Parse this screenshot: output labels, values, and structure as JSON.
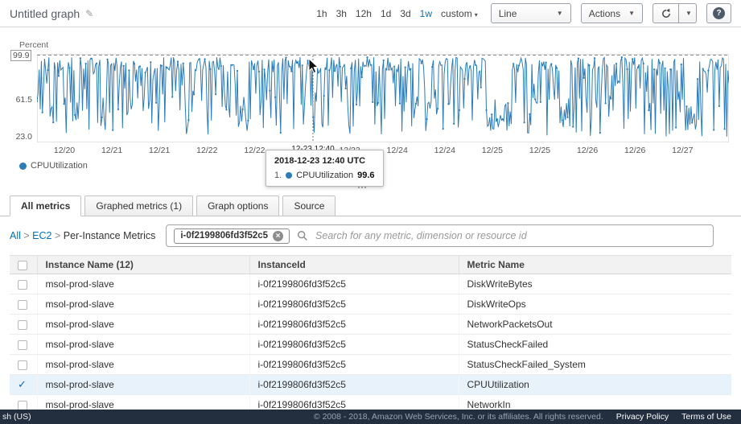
{
  "header": {
    "title": "Untitled graph",
    "time_ranges": [
      {
        "label": "1h",
        "selected": false
      },
      {
        "label": "3h",
        "selected": false
      },
      {
        "label": "12h",
        "selected": false
      },
      {
        "label": "1d",
        "selected": false
      },
      {
        "label": "3d",
        "selected": false
      },
      {
        "label": "1w",
        "selected": true
      },
      {
        "label": "custom",
        "selected": false,
        "has_caret": true
      }
    ],
    "chart_type_select": "Line",
    "actions_button": "Actions",
    "help_button": "?"
  },
  "chart": {
    "y_axis_title": "Percent",
    "y_ticks": [
      {
        "label": "99.9",
        "value": 99.9
      },
      {
        "label": "61.5",
        "value": 61.5
      },
      {
        "label": "23.0",
        "value": 23.0
      }
    ],
    "x_ticks": [
      "12/20",
      "12/21",
      "12/21",
      "12/22",
      "12/22",
      "12/23",
      "12/23",
      "12/24",
      "12/24",
      "12/25",
      "12/25",
      "12/26",
      "12/26",
      "12/27"
    ],
    "legend": [
      {
        "label": "CPUUtilization",
        "color": "#2b7cb9"
      }
    ],
    "crosshair_label": "12-23 12:40",
    "line_color": "#2b7cb9",
    "tooltip": {
      "title": "2018-12-23 12:40 UTC",
      "rows": [
        {
          "rank": "1.",
          "label": "CPUUtilization",
          "value": "99.6",
          "color": "#2b7cb9"
        }
      ]
    }
  },
  "chart_data": {
    "type": "line",
    "series_name": "CPUUtilization",
    "unit": "Percent",
    "ylim": [
      23.0,
      99.9
    ],
    "x_range": [
      "12/20",
      "12/27"
    ],
    "description": "Dense 5-minute CPU utilization samples for one week, oscillating rapidly between ~23% and ~100% with occasional quieter low-utilization stretches; hovered sample 2018-12-23 12:40 UTC = 99.6%",
    "generator": {
      "seed": 20181223,
      "points": 640,
      "high_probability": 0.55
    }
  },
  "tabs": [
    {
      "label": "All metrics",
      "active": true
    },
    {
      "label": "Graphed metrics (1)",
      "active": false
    },
    {
      "label": "Graph options",
      "active": false
    },
    {
      "label": "Source",
      "active": false
    }
  ],
  "filter_bar": {
    "breadcrumbs": [
      {
        "label": "All",
        "link": true
      },
      {
        "label": "EC2",
        "link": true
      },
      {
        "label": "Per-Instance Metrics",
        "link": false
      }
    ],
    "filter_tag": "i-0f2199806fd3f52c5",
    "search_placeholder": "Search for any metric, dimension or resource id"
  },
  "metrics_table": {
    "columns": [
      "Instance Name (12)",
      "InstanceId",
      "Metric Name"
    ],
    "rows": [
      {
        "checked": false,
        "selected": false,
        "instance_name": "msol-prod-slave",
        "instance_id": "i-0f2199806fd3f52c5",
        "metric_name": "DiskWriteBytes"
      },
      {
        "checked": false,
        "selected": false,
        "instance_name": "msol-prod-slave",
        "instance_id": "i-0f2199806fd3f52c5",
        "metric_name": "DiskWriteOps"
      },
      {
        "checked": false,
        "selected": false,
        "instance_name": "msol-prod-slave",
        "instance_id": "i-0f2199806fd3f52c5",
        "metric_name": "NetworkPacketsOut"
      },
      {
        "checked": false,
        "selected": false,
        "instance_name": "msol-prod-slave",
        "instance_id": "i-0f2199806fd3f52c5",
        "metric_name": "StatusCheckFailed"
      },
      {
        "checked": false,
        "selected": false,
        "instance_name": "msol-prod-slave",
        "instance_id": "i-0f2199806fd3f52c5",
        "metric_name": "StatusCheckFailed_System"
      },
      {
        "checked": true,
        "selected": true,
        "instance_name": "msol-prod-slave",
        "instance_id": "i-0f2199806fd3f52c5",
        "metric_name": "CPUUtilization"
      },
      {
        "checked": false,
        "selected": false,
        "instance_name": "msol-prod-slave",
        "instance_id": "i-0f2199806fd3f52c5",
        "metric_name": "NetworkIn"
      }
    ]
  },
  "footer": {
    "language": "sh (US)",
    "copyright": "© 2008 - 2018, Amazon Web Services, Inc. or its affiliates. All rights reserved.",
    "privacy": "Privacy Policy",
    "terms": "Terms of Use"
  },
  "colors": {
    "accent_blue": "#0073bb",
    "series_blue": "#2b7cb9",
    "selected_row_bg": "#e8f2fb",
    "footer_bg": "#232f3e"
  }
}
